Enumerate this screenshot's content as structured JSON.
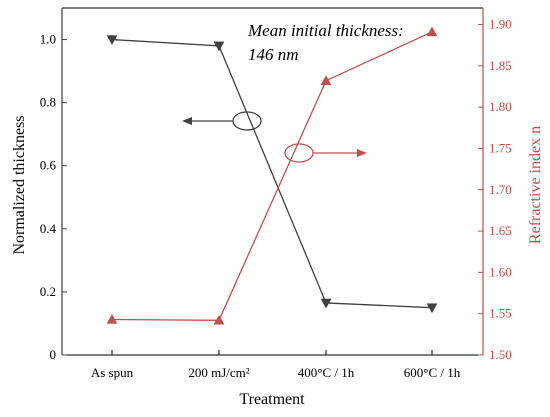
{
  "chart_data": {
    "type": "line",
    "categories": [
      "As spun",
      "200 mJ/cm²",
      "400°C / 1h",
      "600°C / 1h"
    ],
    "xlabel": "Treatment",
    "y_left": {
      "label": "Normalized thickness",
      "range": [
        0,
        1.1
      ],
      "ticks": [
        0,
        0.2,
        0.4,
        0.6,
        0.8,
        1.0
      ],
      "tick_labels": [
        "0",
        "0.2",
        "0.4",
        "0.6",
        "0.8",
        "1.0"
      ],
      "color": "#404040"
    },
    "y_right": {
      "label": "Refractive index n",
      "range": [
        1.5,
        1.92
      ],
      "ticks": [
        1.5,
        1.55,
        1.6,
        1.65,
        1.7,
        1.75,
        1.8,
        1.85,
        1.9
      ],
      "tick_labels": [
        "1.50",
        "1.55",
        "1.60",
        "1.65",
        "1.70",
        "1.75",
        "1.80",
        "1.85",
        "1.90"
      ],
      "color": "#c0504d"
    },
    "series": [
      {
        "axis": "left",
        "values": [
          1.0,
          0.98,
          0.165,
          0.15
        ],
        "color": "#404040",
        "marker": "triangle-down"
      },
      {
        "axis": "right",
        "values": [
          1.543,
          1.542,
          1.832,
          1.891
        ],
        "color": "#c0504d",
        "marker": "triangle-up"
      }
    ],
    "annotation_lines": [
      "Mean initial thickness:",
      "146 nm"
    ],
    "grid": false,
    "legend": "none"
  }
}
